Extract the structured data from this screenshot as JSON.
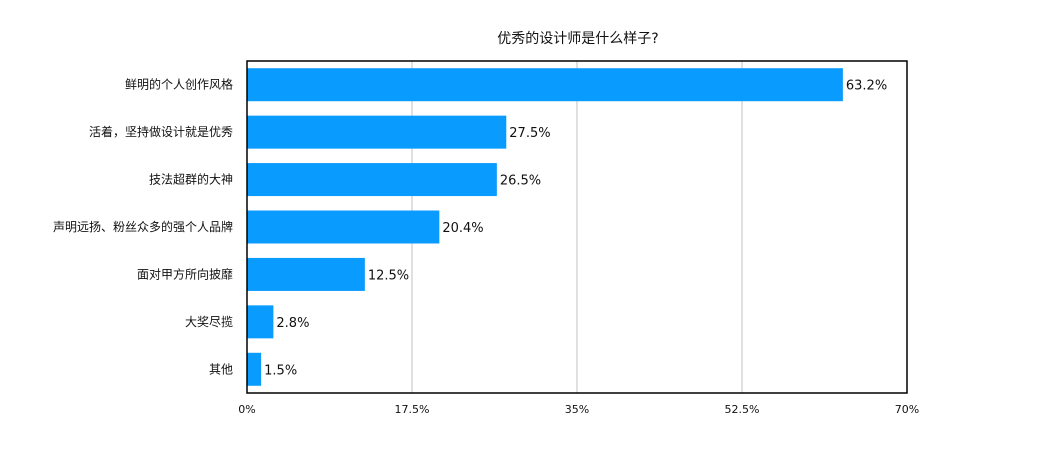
{
  "chart_data": {
    "type": "bar",
    "orientation": "horizontal",
    "title": "优秀的设计师是什么样子?",
    "categories": [
      "鲜明的个人创作风格",
      "活着，坚持做设计就是优秀",
      "技法超群的大神",
      "声明远扬、粉丝众多的强个人品牌",
      "面对甲方所向披靡",
      "大奖尽揽",
      "其他"
    ],
    "values": [
      63.2,
      27.5,
      26.5,
      20.4,
      12.5,
      2.8,
      1.5
    ],
    "value_labels": [
      "63.2%",
      "27.5%",
      "26.5%",
      "20.4%",
      "12.5%",
      "2.8%",
      "1.5%"
    ],
    "xlim": [
      0,
      70
    ],
    "x_ticks": [
      0,
      17.5,
      35,
      52.5,
      70
    ],
    "x_tick_labels": [
      "0%",
      "17.5%",
      "35%",
      "52.5%",
      "70%"
    ],
    "grid": "vertical",
    "legend": "none",
    "colors": {
      "bar": "#0a9bff",
      "grid": "#c0c0c0",
      "axis": "#000000"
    }
  }
}
